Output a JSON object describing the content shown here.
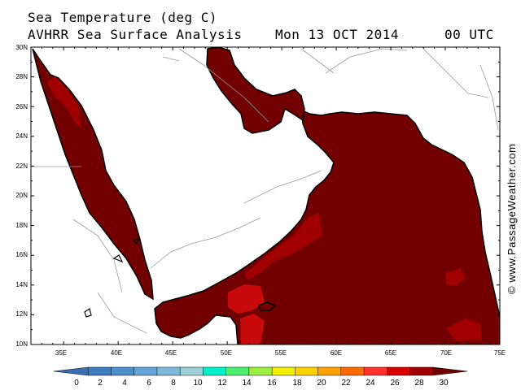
{
  "header": {
    "title": "Sea Temperature (deg C)",
    "analysis": "AVHRR Sea Surface Analysis",
    "date": "Mon 13 OCT 2014",
    "time": "00 UTC"
  },
  "credit": "© www.PassageWeather.com",
  "map": {
    "lat_labels": [
      "30N",
      "28N",
      "26N",
      "24N",
      "22N",
      "20N",
      "18N",
      "16N",
      "14N",
      "12N",
      "10N"
    ],
    "lon_labels": [
      "35E",
      "40E",
      "45E",
      "50E",
      "55E",
      "60E",
      "65E",
      "70E",
      "75E"
    ],
    "colors": {
      "land": "#ffffff",
      "sea_main": "#730000",
      "sea_warm": "#a00000",
      "sea_hot": "#c80a0a",
      "coast": "#000000",
      "border": "#999999"
    }
  },
  "colorbar": {
    "labels": [
      "0",
      "2",
      "4",
      "6",
      "8",
      "10",
      "12",
      "14",
      "16",
      "18",
      "20",
      "22",
      "24",
      "26",
      "28",
      "30"
    ],
    "colors": [
      "#3a6fb5",
      "#3f7dc0",
      "#4b8fcc",
      "#62a3d6",
      "#80b8dc",
      "#9ccfd8",
      "#00f0c8",
      "#4cf070",
      "#9cf040",
      "#f0f000",
      "#ffd000",
      "#ffa000",
      "#ff6a00",
      "#ff3030",
      "#d80000",
      "#a00000",
      "#700000"
    ]
  }
}
